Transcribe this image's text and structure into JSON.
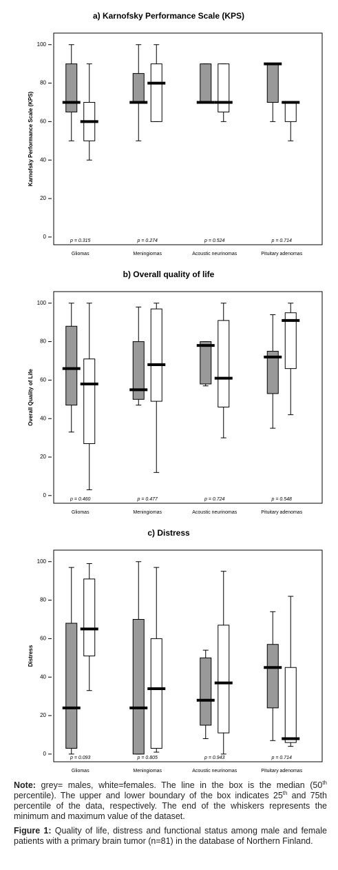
{
  "chart_data": [
    {
      "type": "box",
      "title": "a) Karnofsky Performance Scale (KPS)",
      "ylabel": "Karnofsky Performance Scale (KPS)",
      "categories": [
        "Gliomas",
        "Meningiomas",
        "Acoustic neurinomas",
        "Pituitary adenomas"
      ],
      "series": [
        {
          "color": "#999999",
          "min": [
            50,
            50,
            70,
            60
          ],
          "q1": [
            65,
            70,
            70,
            70
          ],
          "median": [
            70,
            70,
            70,
            90
          ],
          "q3": [
            90,
            85,
            90,
            90
          ],
          "max": [
            100,
            100,
            90,
            90
          ]
        },
        {
          "color": "#ffffff",
          "min": [
            40,
            60,
            60,
            50
          ],
          "q1": [
            50,
            60,
            65,
            60
          ],
          "median": [
            60,
            80,
            70,
            70
          ],
          "q3": [
            70,
            90,
            90,
            70
          ],
          "max": [
            90,
            100,
            90,
            70
          ]
        }
      ],
      "annotations": [
        "p = 0.315",
        "p = 0.274",
        "p = 0.524",
        "p = 0.714"
      ],
      "ylim": [
        -4,
        106
      ],
      "yticks": [
        0,
        20,
        40,
        60,
        80,
        100
      ]
    },
    {
      "type": "box",
      "title": "b) Overall quality of life",
      "ylabel": "Overall Quality of Life",
      "categories": [
        "Gliomas",
        "Meningiomas",
        "Acoustic neurinomas",
        "Pituitary adenomas"
      ],
      "series": [
        {
          "color": "#999999",
          "min": [
            33,
            47,
            57,
            35
          ],
          "q1": [
            47,
            50,
            58,
            53
          ],
          "median": [
            66,
            55,
            78,
            72
          ],
          "q3": [
            88,
            80,
            80,
            75
          ],
          "max": [
            100,
            98,
            80,
            94
          ]
        },
        {
          "color": "#ffffff",
          "min": [
            3,
            12,
            30,
            42
          ],
          "q1": [
            27,
            49,
            46,
            66
          ],
          "median": [
            58,
            68,
            61,
            91
          ],
          "q3": [
            71,
            97,
            91,
            95
          ],
          "max": [
            100,
            100,
            100,
            100
          ]
        }
      ],
      "annotations": [
        "p = 0.460",
        "p = 0.477",
        "p = 0.724",
        "p = 0.548"
      ],
      "ylim": [
        -4,
        106
      ],
      "yticks": [
        0,
        20,
        40,
        60,
        80,
        100
      ]
    },
    {
      "type": "box",
      "title": "c) Distress",
      "ylabel": "Distress",
      "categories": [
        "Gliomas",
        "Meningiomas",
        "Acoustic neurinomas",
        "Pituitary adenomas"
      ],
      "series": [
        {
          "color": "#999999",
          "min": [
            0,
            0,
            8,
            7
          ],
          "q1": [
            3,
            0,
            15,
            24
          ],
          "median": [
            24,
            24,
            28,
            45
          ],
          "q3": [
            68,
            70,
            50,
            57
          ],
          "max": [
            97,
            100,
            54,
            74
          ]
        },
        {
          "color": "#ffffff",
          "min": [
            33,
            1,
            0,
            4
          ],
          "q1": [
            51,
            3,
            11,
            6
          ],
          "median": [
            65,
            34,
            37,
            8
          ],
          "q3": [
            91,
            60,
            67,
            45
          ],
          "max": [
            99,
            97,
            95,
            82
          ]
        }
      ],
      "annotations": [
        "p = 0.093",
        "p = 0.805",
        "p = 0.943",
        "p = 0.714"
      ],
      "ylim": [
        -4,
        106
      ],
      "yticks": [
        0,
        20,
        40,
        60,
        80,
        100
      ]
    }
  ],
  "note": {
    "label": "Note:",
    "parts": [
      "grey= males, white=females. The line in the box is the median (50",
      "th",
      " percentile). The upper and lower boundary of the box indicates 25",
      "th",
      " and 75th percentile of the data, respectively. The end of the whiskers represents the minimum and maximum value of the dataset."
    ]
  },
  "caption": {
    "label": "Figure 1:",
    "text": "Quality of life, distress and functional status among male and female patients with a primary brain tumor (n=81) in the database of Northern Finland."
  }
}
